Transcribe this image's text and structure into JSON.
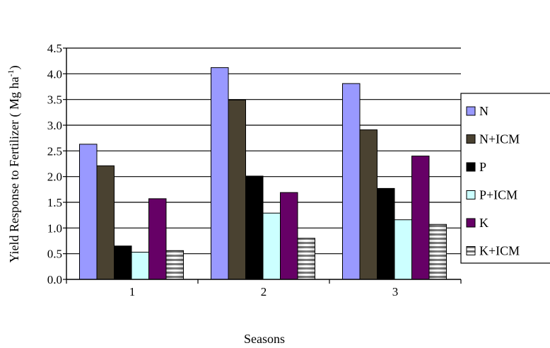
{
  "chart_data": {
    "type": "bar",
    "title": "",
    "xlabel": "Seasons",
    "ylabel": "Yield Response to Fertilizer ( Mg ha",
    "ylabel_sup": "-1",
    "ylabel_close": ")",
    "categories": [
      "1",
      "2",
      "3"
    ],
    "ylim": [
      0,
      4.5
    ],
    "yticks": [
      "0.0",
      "0.5",
      "1.0",
      "1.5",
      "2.0",
      "2.5",
      "3.0",
      "3.5",
      "4.0",
      "4.5"
    ],
    "grid": true,
    "legend_position": "right",
    "series": [
      {
        "name": "N",
        "color": "#9999ff",
        "pattern": "solid",
        "values": [
          2.63,
          4.12,
          3.81
        ]
      },
      {
        "name": "N+ICM",
        "color": "#4a4231",
        "pattern": "solid",
        "values": [
          2.21,
          3.49,
          2.91
        ]
      },
      {
        "name": "P",
        "color": "#000000",
        "pattern": "solid",
        "values": [
          0.65,
          2.01,
          1.77
        ]
      },
      {
        "name": "P+ICM",
        "color": "#ccffff",
        "pattern": "solid",
        "values": [
          0.53,
          1.29,
          1.16
        ]
      },
      {
        "name": "K",
        "color": "#660066",
        "pattern": "solid",
        "values": [
          1.57,
          1.69,
          2.4
        ]
      },
      {
        "name": "K+ICM",
        "color": "#bfbfbf",
        "pattern": "stripes",
        "values": [
          0.56,
          0.8,
          1.07
        ]
      }
    ]
  }
}
